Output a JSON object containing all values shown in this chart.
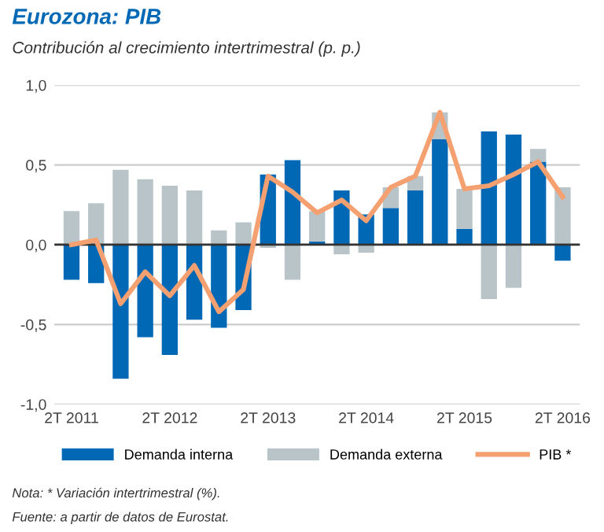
{
  "chart_data": {
    "type": "bar",
    "title": "Eurozona: PIB",
    "subtitle": "Contribución al crecimiento intertrimestral (p. p.)",
    "categories": [
      "2T 2011",
      null,
      null,
      null,
      "2T 2012",
      null,
      null,
      null,
      "2T 2013",
      null,
      null,
      null,
      "2T 2014",
      null,
      null,
      null,
      "2T 2015",
      null,
      null,
      null,
      "2T 2016"
    ],
    "stacked": true,
    "series": [
      {
        "name": "Demanda interna",
        "color": "#0068b4",
        "values": [
          -0.22,
          -0.24,
          -0.84,
          -0.58,
          -0.69,
          -0.47,
          -0.52,
          -0.41,
          0.44,
          0.53,
          0.02,
          0.34,
          0.19,
          0.23,
          0.34,
          0.66,
          0.1,
          0.71,
          0.69,
          0.52,
          -0.1
        ]
      },
      {
        "name": "Demanda externa",
        "color": "#b8c4c8",
        "values": [
          0.21,
          0.26,
          0.47,
          0.41,
          0.37,
          0.34,
          0.09,
          0.14,
          -0.02,
          -0.22,
          0.19,
          -0.06,
          -0.05,
          0.13,
          0.09,
          0.17,
          0.25,
          -0.34,
          -0.27,
          0.08,
          0.36
        ]
      },
      {
        "name": "PIB *",
        "type": "line",
        "color": "#f4a070",
        "values": [
          0.0,
          0.03,
          -0.37,
          -0.17,
          -0.32,
          -0.13,
          -0.42,
          -0.28,
          0.43,
          0.33,
          0.2,
          0.28,
          0.15,
          0.36,
          0.43,
          0.83,
          0.35,
          0.37,
          0.44,
          0.52,
          0.3
        ]
      }
    ],
    "ylim": [
      -1.0,
      1.0
    ],
    "yticks": [
      {
        "value": -1.0,
        "label": "-1,0"
      },
      {
        "value": -0.5,
        "label": "-0,5"
      },
      {
        "value": 0.0,
        "label": "0,0"
      },
      {
        "value": 0.5,
        "label": "0,5"
      },
      {
        "value": 1.0,
        "label": "1,0"
      }
    ],
    "grid": "y",
    "legend": "bottom",
    "annotations": [
      "Nota: * Variación intertrimestral (%).",
      "Fuente: a partir de datos de Eurostat."
    ]
  }
}
